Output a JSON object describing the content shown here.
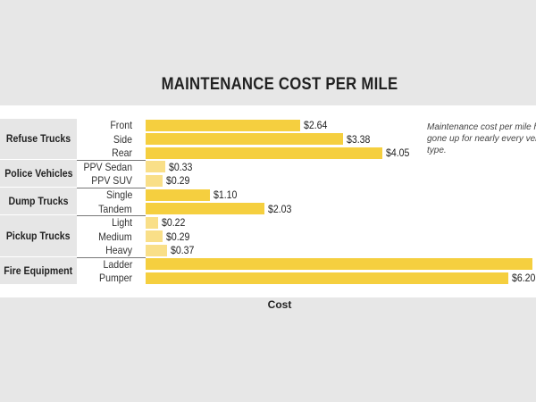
{
  "chart_data": {
    "type": "bar",
    "orientation": "horizontal",
    "title": "MAINTENANCE COST PER MILE",
    "xlabel": "Cost",
    "annotation": "Maintenance cost per mile has gone up for nearly every vehicle type.",
    "groups": [
      {
        "name": "Refuse Trucks",
        "items": [
          {
            "label": "Front",
            "value": 2.64,
            "text": "$2.64"
          },
          {
            "label": "Side",
            "value": 3.38,
            "text": "$3.38"
          },
          {
            "label": "Rear",
            "value": 4.05,
            "text": "$4.05"
          }
        ]
      },
      {
        "name": "Police Vehicles",
        "items": [
          {
            "label": "PPV Sedan",
            "value": 0.33,
            "text": "$0.33"
          },
          {
            "label": "PPV SUV",
            "value": 0.29,
            "text": "$0.29"
          }
        ]
      },
      {
        "name": "Dump Trucks",
        "items": [
          {
            "label": "Single",
            "value": 1.1,
            "text": "$1.10"
          },
          {
            "label": "Tandem",
            "value": 2.03,
            "text": "$2.03"
          }
        ]
      },
      {
        "name": "Pickup Trucks",
        "items": [
          {
            "label": "Light",
            "value": 0.22,
            "text": "$0.22"
          },
          {
            "label": "Medium",
            "value": 0.29,
            "text": "$0.29"
          },
          {
            "label": "Heavy",
            "value": 0.37,
            "text": "$0.37"
          }
        ]
      },
      {
        "name": "Fire Equipment",
        "items": [
          {
            "label": "Ladder",
            "value": 6.61,
            "text": ""
          },
          {
            "label": "Pumper",
            "value": 6.2,
            "text": "$6.20"
          }
        ]
      }
    ],
    "colors": {
      "bar": "#f5cf3f",
      "bar_light": "#f9df88"
    }
  }
}
